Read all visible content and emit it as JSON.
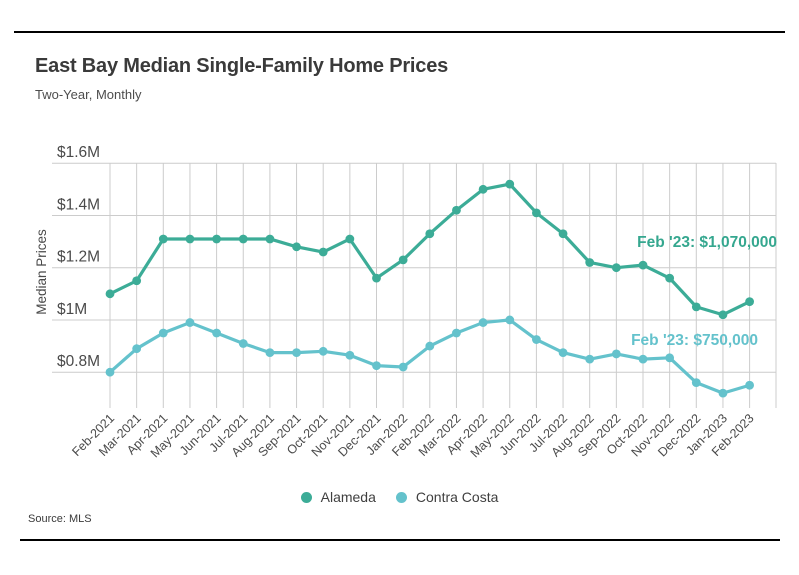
{
  "header": {
    "title": "East Bay Median Single-Family Home Prices",
    "subtitle": "Two-Year, Monthly"
  },
  "footer": {
    "source": "Source: MLS"
  },
  "chart_data": {
    "type": "line",
    "title": "East Bay Median Single-Family Home Prices",
    "subtitle": "Two-Year, Monthly",
    "xlabel": "",
    "ylabel": "Median Prices",
    "unit": "millions of USD",
    "grid": true,
    "legend_position": "bottom",
    "ylim": [
      0.68,
      1.66
    ],
    "yticks": {
      "labels": [
        "$1.6M",
        "$1.4M",
        "$1.2M",
        "$1M",
        "$0.8M"
      ],
      "values": [
        1.6,
        1.4,
        1.2,
        1.0,
        0.8
      ]
    },
    "x": [
      "Feb-2021",
      "Mar-2021",
      "Apr-2021",
      "May-2021",
      "Jun-2021",
      "Jul-2021",
      "Aug-2021",
      "Sep-2021",
      "Oct-2021",
      "Nov-2021",
      "Dec-2021",
      "Jan-2022",
      "Feb-2022",
      "Mar-2022",
      "Apr-2022",
      "May-2022",
      "Jun-2022",
      "Jul-2022",
      "Aug-2022",
      "Sep-2022",
      "Oct-2022",
      "Nov-2022",
      "Dec-2022",
      "Jan-2023",
      "Feb-2023"
    ],
    "series": [
      {
        "name": "Alameda",
        "color": "#3CAC97",
        "values": [
          1.1,
          1.15,
          1.31,
          1.31,
          1.31,
          1.31,
          1.31,
          1.28,
          1.26,
          1.31,
          1.16,
          1.23,
          1.33,
          1.42,
          1.5,
          1.52,
          1.41,
          1.33,
          1.22,
          1.2,
          1.21,
          1.16,
          1.05,
          1.02,
          1.07
        ]
      },
      {
        "name": "Contra Costa",
        "color": "#64C2CC",
        "values": [
          0.8,
          0.89,
          0.95,
          0.99,
          0.95,
          0.91,
          0.875,
          0.875,
          0.88,
          0.865,
          0.825,
          0.82,
          0.9,
          0.95,
          0.99,
          1.0,
          0.925,
          0.875,
          0.85,
          0.87,
          0.85,
          0.855,
          0.76,
          0.72,
          0.75
        ]
      }
    ],
    "annotations": [
      {
        "text": "Feb '23: $1,070,000",
        "series": "Alameda",
        "value_usd": 1070000,
        "color": "#35A78F"
      },
      {
        "text": "Feb '23: $750,000",
        "series": "Contra Costa",
        "value_usd": 750000,
        "color": "#64C2CC"
      }
    ]
  }
}
